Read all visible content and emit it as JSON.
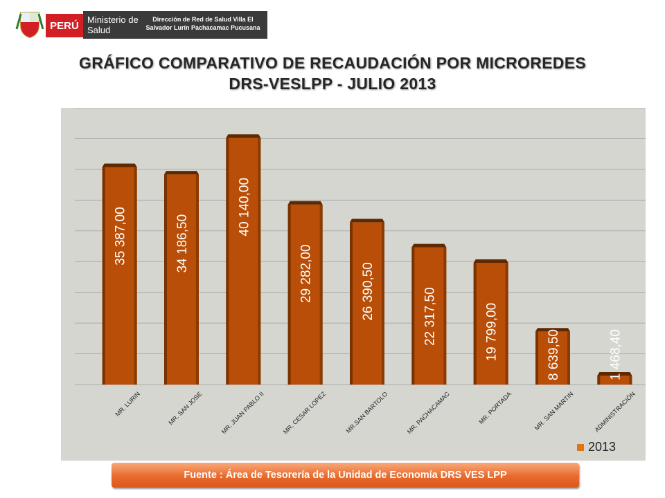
{
  "header": {
    "country": "PERÚ",
    "ministry": "Ministerio de Salud",
    "direction": "Dirección de Red de Salud Villa El Salvador Lurín Pachacamac Pucusana"
  },
  "title_line1": "GRÁFICO COMPARATIVO DE RECAUDACIÓN POR MICROREDES",
  "title_line2": "DRS-VESLPP - JULIO 2013",
  "chart_data": {
    "type": "bar",
    "categories": [
      "MR. LURIN",
      "MR. SAN JOSE",
      "MR. JUAN PABLO II",
      "MR. CESAR LOPEZ",
      "MR.SAN BARTOLO",
      "MR. PACHACAMAC",
      "MR. PORTADA",
      "MR. SAN MARTIN",
      "ADMINISTRACIÓN"
    ],
    "series": [
      {
        "name": "2013",
        "values": [
          35387.0,
          34186.5,
          40140.0,
          29282.0,
          26390.5,
          22317.5,
          19799.0,
          8639.5,
          1468.4
        ],
        "labels": [
          "35 387,00",
          "34 186,50",
          "40 140,00",
          "29 282,00",
          "26 390,50",
          "22 317,50",
          "19 799,00",
          "8 639,50",
          "1 468,40"
        ]
      }
    ],
    "ylim": [
      0,
      45000
    ],
    "grid": true,
    "legend": "bottom-right",
    "colors": {
      "bar": "#b84e07",
      "bar_top": "#5e2800",
      "background": "#d6d6d1"
    }
  },
  "source": "Fuente : Área de Tesorería de la Unidad de Economía DRS VES LPP"
}
